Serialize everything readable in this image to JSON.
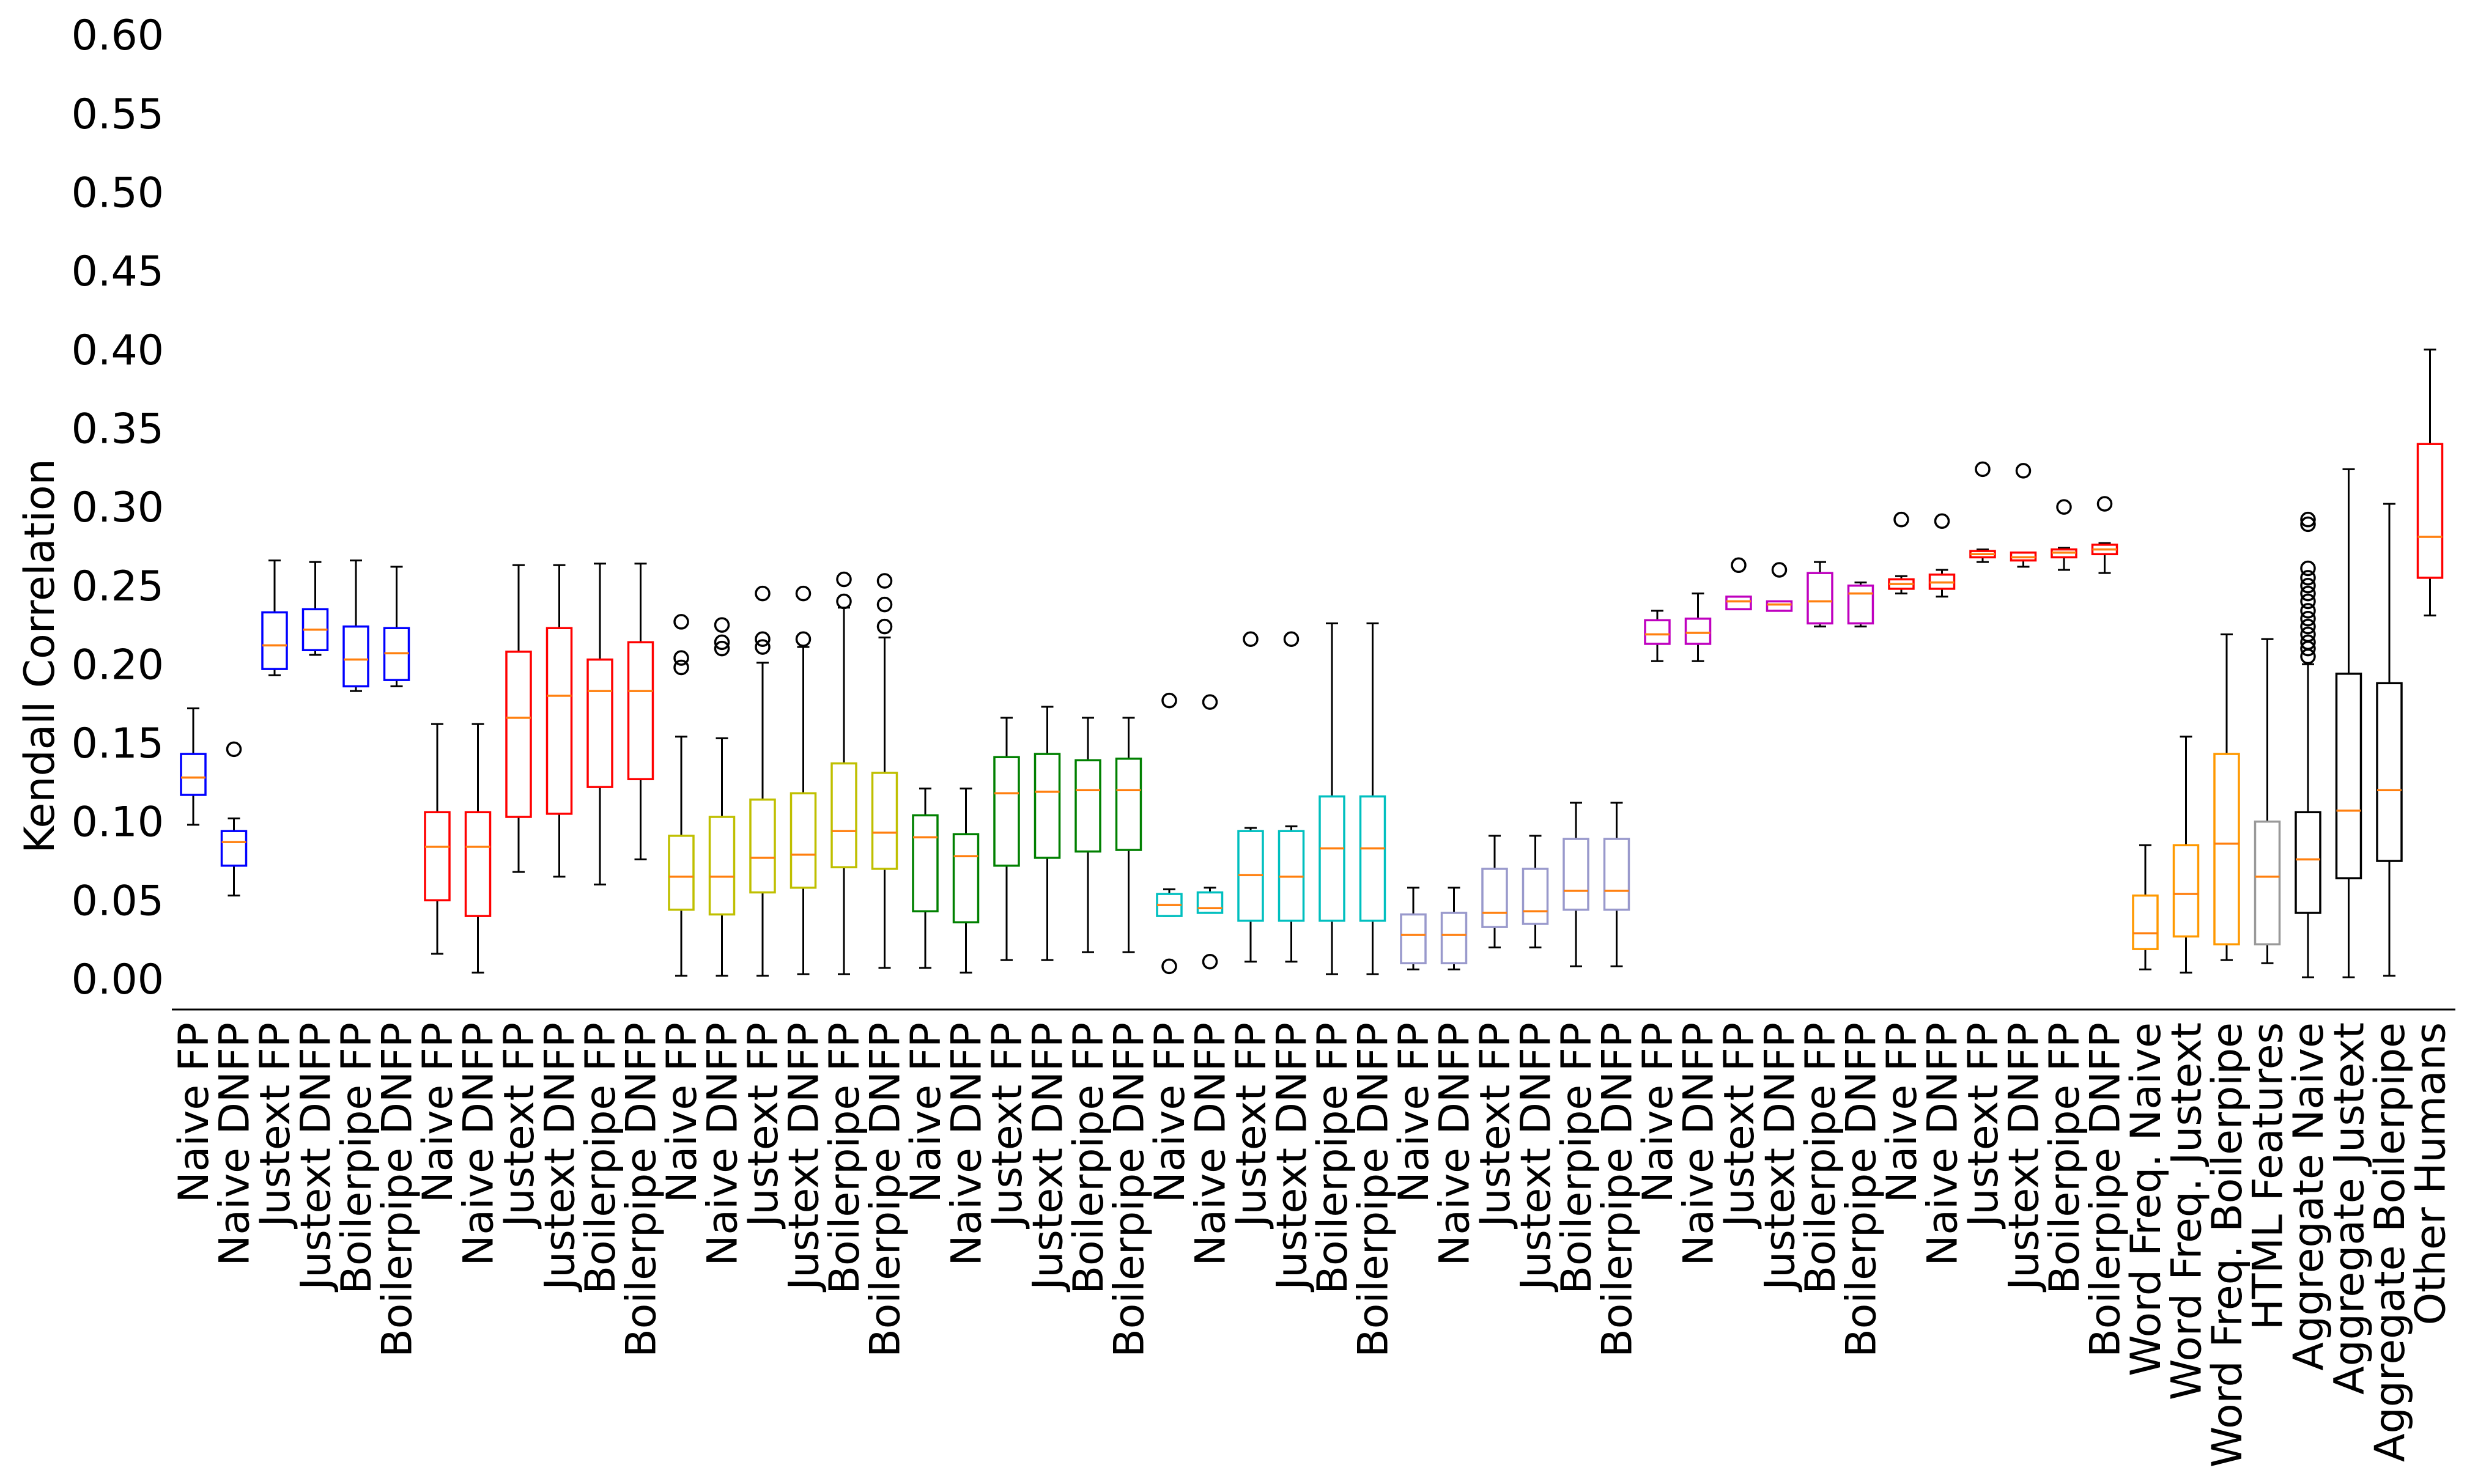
{
  "chart_data": {
    "type": "box",
    "title": "",
    "xlabel": "",
    "ylabel": "Kendall Correlation",
    "ylim": [
      0.0,
      0.6
    ],
    "yticks": [
      "0.00",
      "0.05",
      "0.10",
      "0.15",
      "0.20",
      "0.25",
      "0.30",
      "0.35",
      "0.40",
      "0.45",
      "0.50",
      "0.55",
      "0.60"
    ],
    "median_color": "#ff7f0e",
    "boxes": [
      {
        "label": "Naive FP",
        "color": "#0000ff",
        "whislo": 0.098,
        "q1": 0.117,
        "med": 0.128,
        "q3": 0.143,
        "whishi": 0.172,
        "fliers": []
      },
      {
        "label": "Naive DNFP",
        "color": "#0000ff",
        "whislo": 0.053,
        "q1": 0.072,
        "med": 0.087,
        "q3": 0.094,
        "whishi": 0.102,
        "fliers": [
          0.146
        ]
      },
      {
        "label": "Justext FP",
        "color": "#0000ff",
        "whislo": 0.193,
        "q1": 0.197,
        "med": 0.212,
        "q3": 0.233,
        "whishi": 0.266,
        "fliers": []
      },
      {
        "label": "Justext DNFP",
        "color": "#0000ff",
        "whislo": 0.206,
        "q1": 0.209,
        "med": 0.222,
        "q3": 0.235,
        "whishi": 0.265,
        "fliers": []
      },
      {
        "label": "Boilerpipe FP",
        "color": "#0000ff",
        "whislo": 0.183,
        "q1": 0.186,
        "med": 0.203,
        "q3": 0.224,
        "whishi": 0.266,
        "fliers": []
      },
      {
        "label": "Boilerpipe DNFP",
        "color": "#0000ff",
        "whislo": 0.186,
        "q1": 0.19,
        "med": 0.207,
        "q3": 0.223,
        "whishi": 0.262,
        "fliers": []
      },
      {
        "label": "Naive FP",
        "color": "#ff0000",
        "whislo": 0.016,
        "q1": 0.05,
        "med": 0.084,
        "q3": 0.106,
        "whishi": 0.162,
        "fliers": []
      },
      {
        "label": "Naive DNFP",
        "color": "#ff0000",
        "whislo": 0.004,
        "q1": 0.04,
        "med": 0.084,
        "q3": 0.106,
        "whishi": 0.162,
        "fliers": []
      },
      {
        "label": "Justext FP",
        "color": "#ff0000",
        "whislo": 0.068,
        "q1": 0.103,
        "med": 0.166,
        "q3": 0.208,
        "whishi": 0.263,
        "fliers": []
      },
      {
        "label": "Justext DNFP",
        "color": "#ff0000",
        "whislo": 0.065,
        "q1": 0.105,
        "med": 0.18,
        "q3": 0.223,
        "whishi": 0.263,
        "fliers": []
      },
      {
        "label": "Boilerpipe FP",
        "color": "#ff0000",
        "whislo": 0.06,
        "q1": 0.122,
        "med": 0.183,
        "q3": 0.203,
        "whishi": 0.264,
        "fliers": []
      },
      {
        "label": "Boilerpipe DNFP",
        "color": "#ff0000",
        "whislo": 0.076,
        "q1": 0.127,
        "med": 0.183,
        "q3": 0.214,
        "whishi": 0.264,
        "fliers": []
      },
      {
        "label": "Naive FP",
        "color": "#bfbf00",
        "whislo": 0.002,
        "q1": 0.044,
        "med": 0.065,
        "q3": 0.091,
        "whishi": 0.154,
        "fliers": [
          0.198,
          0.204,
          0.227
        ]
      },
      {
        "label": "Naive DNFP",
        "color": "#bfbf00",
        "whislo": 0.002,
        "q1": 0.041,
        "med": 0.065,
        "q3": 0.103,
        "whishi": 0.153,
        "fliers": [
          0.21,
          0.214,
          0.225
        ]
      },
      {
        "label": "Justext FP",
        "color": "#bfbf00",
        "whislo": 0.002,
        "q1": 0.055,
        "med": 0.077,
        "q3": 0.114,
        "whishi": 0.201,
        "fliers": [
          0.211,
          0.216,
          0.245
        ]
      },
      {
        "label": "Justext DNFP",
        "color": "#bfbf00",
        "whislo": 0.003,
        "q1": 0.058,
        "med": 0.079,
        "q3": 0.118,
        "whishi": 0.211,
        "fliers": [
          0.216,
          0.245
        ]
      },
      {
        "label": "Boilerpipe FP",
        "color": "#bfbf00",
        "whislo": 0.003,
        "q1": 0.071,
        "med": 0.094,
        "q3": 0.137,
        "whishi": 0.236,
        "fliers": [
          0.24,
          0.254
        ]
      },
      {
        "label": "Boilerpipe DNFP",
        "color": "#bfbf00",
        "whislo": 0.007,
        "q1": 0.07,
        "med": 0.093,
        "q3": 0.131,
        "whishi": 0.217,
        "fliers": [
          0.224,
          0.238,
          0.253
        ]
      },
      {
        "label": "Naive FP",
        "color": "#008000",
        "whislo": 0.007,
        "q1": 0.043,
        "med": 0.09,
        "q3": 0.104,
        "whishi": 0.121,
        "fliers": []
      },
      {
        "label": "Naive DNFP",
        "color": "#008000",
        "whislo": 0.004,
        "q1": 0.036,
        "med": 0.078,
        "q3": 0.092,
        "whishi": 0.121,
        "fliers": []
      },
      {
        "label": "Justext FP",
        "color": "#008000",
        "whislo": 0.012,
        "q1": 0.072,
        "med": 0.118,
        "q3": 0.141,
        "whishi": 0.166,
        "fliers": []
      },
      {
        "label": "Justext DNFP",
        "color": "#008000",
        "whislo": 0.012,
        "q1": 0.077,
        "med": 0.119,
        "q3": 0.143,
        "whishi": 0.173,
        "fliers": []
      },
      {
        "label": "Boilerpipe FP",
        "color": "#008000",
        "whislo": 0.017,
        "q1": 0.081,
        "med": 0.12,
        "q3": 0.139,
        "whishi": 0.166,
        "fliers": []
      },
      {
        "label": "Boilerpipe DNFP",
        "color": "#008000",
        "whislo": 0.017,
        "q1": 0.082,
        "med": 0.12,
        "q3": 0.14,
        "whishi": 0.166,
        "fliers": []
      },
      {
        "label": "Naive FP",
        "color": "#00bfbf",
        "whislo": 0.04,
        "q1": 0.04,
        "med": 0.047,
        "q3": 0.054,
        "whishi": 0.057,
        "fliers": [
          0.008,
          0.177
        ]
      },
      {
        "label": "Naive DNFP",
        "color": "#00bfbf",
        "whislo": 0.042,
        "q1": 0.042,
        "med": 0.045,
        "q3": 0.055,
        "whishi": 0.058,
        "fliers": [
          0.011,
          0.176
        ]
      },
      {
        "label": "Justext FP",
        "color": "#00bfbf",
        "whislo": 0.011,
        "q1": 0.037,
        "med": 0.066,
        "q3": 0.094,
        "whishi": 0.096,
        "fliers": [
          0.216
        ]
      },
      {
        "label": "Justext DNFP",
        "color": "#00bfbf",
        "whislo": 0.011,
        "q1": 0.037,
        "med": 0.065,
        "q3": 0.094,
        "whishi": 0.097,
        "fliers": [
          0.216
        ]
      },
      {
        "label": "Boilerpipe FP",
        "color": "#00bfbf",
        "whislo": 0.003,
        "q1": 0.037,
        "med": 0.083,
        "q3": 0.116,
        "whishi": 0.226,
        "fliers": []
      },
      {
        "label": "Boilerpipe DNFP",
        "color": "#00bfbf",
        "whislo": 0.003,
        "q1": 0.037,
        "med": 0.083,
        "q3": 0.116,
        "whishi": 0.226,
        "fliers": []
      },
      {
        "label": "Naive FP",
        "color": "#9999cc",
        "whislo": 0.006,
        "q1": 0.01,
        "med": 0.028,
        "q3": 0.041,
        "whishi": 0.058,
        "fliers": []
      },
      {
        "label": "Naive DNFP",
        "color": "#9999cc",
        "whislo": 0.006,
        "q1": 0.01,
        "med": 0.028,
        "q3": 0.042,
        "whishi": 0.058,
        "fliers": []
      },
      {
        "label": "Justext FP",
        "color": "#9999cc",
        "whislo": 0.02,
        "q1": 0.033,
        "med": 0.042,
        "q3": 0.07,
        "whishi": 0.091,
        "fliers": []
      },
      {
        "label": "Justext DNFP",
        "color": "#9999cc",
        "whislo": 0.02,
        "q1": 0.035,
        "med": 0.043,
        "q3": 0.07,
        "whishi": 0.091,
        "fliers": []
      },
      {
        "label": "Boilerpipe FP",
        "color": "#9999cc",
        "whislo": 0.008,
        "q1": 0.044,
        "med": 0.056,
        "q3": 0.089,
        "whishi": 0.112,
        "fliers": []
      },
      {
        "label": "Boilerpipe DNFP",
        "color": "#9999cc",
        "whislo": 0.008,
        "q1": 0.044,
        "med": 0.056,
        "q3": 0.089,
        "whishi": 0.112,
        "fliers": []
      },
      {
        "label": "Naive FP",
        "color": "#bf00bf",
        "whislo": 0.202,
        "q1": 0.213,
        "med": 0.219,
        "q3": 0.228,
        "whishi": 0.234,
        "fliers": []
      },
      {
        "label": "Naive DNFP",
        "color": "#bf00bf",
        "whislo": 0.202,
        "q1": 0.213,
        "med": 0.22,
        "q3": 0.229,
        "whishi": 0.245,
        "fliers": []
      },
      {
        "label": "Justext FP",
        "color": "#bf00bf",
        "whislo": 0.235,
        "q1": 0.235,
        "med": 0.24,
        "q3": 0.243,
        "whishi": 0.243,
        "fliers": [
          0.263
        ]
      },
      {
        "label": "Justext DNFP",
        "color": "#bf00bf",
        "whislo": 0.234,
        "q1": 0.234,
        "med": 0.238,
        "q3": 0.24,
        "whishi": 0.24,
        "fliers": [
          0.26
        ]
      },
      {
        "label": "Boilerpipe FP",
        "color": "#bf00bf",
        "whislo": 0.224,
        "q1": 0.226,
        "med": 0.24,
        "q3": 0.258,
        "whishi": 0.265,
        "fliers": []
      },
      {
        "label": "Boilerpipe DNFP",
        "color": "#bf00bf",
        "whislo": 0.224,
        "q1": 0.226,
        "med": 0.245,
        "q3": 0.25,
        "whishi": 0.252,
        "fliers": []
      },
      {
        "label": "Naive FP",
        "color": "#ff0000",
        "whislo": 0.245,
        "q1": 0.248,
        "med": 0.251,
        "q3": 0.254,
        "whishi": 0.256,
        "fliers": [
          0.292
        ]
      },
      {
        "label": "Naive DNFP",
        "color": "#ff0000",
        "whislo": 0.243,
        "q1": 0.248,
        "med": 0.252,
        "q3": 0.257,
        "whishi": 0.26,
        "fliers": [
          0.291
        ]
      },
      {
        "label": "Justext FP",
        "color": "#ff0000",
        "whislo": 0.265,
        "q1": 0.268,
        "med": 0.27,
        "q3": 0.272,
        "whishi": 0.273,
        "fliers": [
          0.324
        ]
      },
      {
        "label": "Justext DNFP",
        "color": "#ff0000",
        "whislo": 0.262,
        "q1": 0.266,
        "med": 0.268,
        "q3": 0.271,
        "whishi": 0.271,
        "fliers": [
          0.323
        ]
      },
      {
        "label": "Boilerpipe FP",
        "color": "#ff0000",
        "whislo": 0.26,
        "q1": 0.268,
        "med": 0.271,
        "q3": 0.273,
        "whishi": 0.274,
        "fliers": [
          0.3
        ]
      },
      {
        "label": "Boilerpipe DNFP",
        "color": "#ff0000",
        "whislo": 0.258,
        "q1": 0.27,
        "med": 0.273,
        "q3": 0.276,
        "whishi": 0.277,
        "fliers": [
          0.302
        ]
      },
      {
        "label": "Word Freq. Naive",
        "color": "#ff9900",
        "whislo": 0.006,
        "q1": 0.019,
        "med": 0.029,
        "q3": 0.053,
        "whishi": 0.085,
        "fliers": []
      },
      {
        "label": "Word Freq. Justext",
        "color": "#ff9900",
        "whislo": 0.004,
        "q1": 0.027,
        "med": 0.054,
        "q3": 0.085,
        "whishi": 0.154,
        "fliers": []
      },
      {
        "label": "Word Freq. Boilerpipe",
        "color": "#ff9900",
        "whislo": 0.012,
        "q1": 0.022,
        "med": 0.086,
        "q3": 0.143,
        "whishi": 0.219,
        "fliers": []
      },
      {
        "label": "HTML Features",
        "color": "#999999",
        "whislo": 0.01,
        "q1": 0.022,
        "med": 0.065,
        "q3": 0.1,
        "whishi": 0.216,
        "fliers": []
      },
      {
        "label": "Aggregate Naive",
        "color": "#000000",
        "whislo": 0.001,
        "q1": 0.042,
        "med": 0.076,
        "q3": 0.106,
        "whishi": 0.2,
        "fliers": [
          0.205,
          0.21,
          0.214,
          0.219,
          0.224,
          0.229,
          0.234,
          0.24,
          0.245,
          0.25,
          0.255,
          0.261,
          0.289,
          0.292
        ]
      },
      {
        "label": "Aggregate Justext",
        "color": "#000000",
        "whislo": 0.001,
        "q1": 0.064,
        "med": 0.107,
        "q3": 0.194,
        "whishi": 0.324,
        "fliers": []
      },
      {
        "label": "Aggregate Boilerpipe",
        "color": "#000000",
        "whislo": 0.002,
        "q1": 0.075,
        "med": 0.12,
        "q3": 0.188,
        "whishi": 0.302,
        "fliers": []
      },
      {
        "label": "Other Humans",
        "color": "#ff0000",
        "whislo": 0.231,
        "q1": 0.255,
        "med": 0.281,
        "q3": 0.34,
        "whishi": 0.4,
        "fliers": []
      }
    ]
  }
}
